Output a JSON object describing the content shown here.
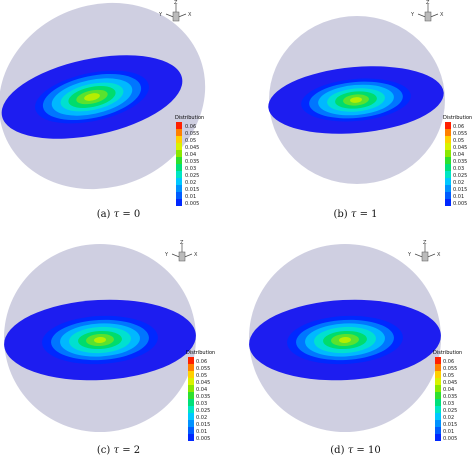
{
  "legend_title": "Distribution",
  "axis_labels": {
    "x": "X",
    "y": "Y",
    "z": "Z"
  },
  "colors": {
    "sphere": "#c7c7dc",
    "disk_outer": "#1d1df0",
    "scale": [
      "#0028ff",
      "#005dff",
      "#0092ff",
      "#00c8ff",
      "#00e6c4",
      "#00e07a",
      "#2ee02e",
      "#8ae800",
      "#d9f200",
      "#ffd000",
      "#ff8000",
      "#ff2000"
    ]
  },
  "panels": [
    {
      "caption_prefix": "(a)",
      "tau_symbol": "τ",
      "caption_suffix": "= 0",
      "ticks": [
        "0.06",
        "0.055",
        "0.05",
        "0.045",
        "0.04",
        "0.035",
        "0.03",
        "0.025",
        "0.02",
        "0.015",
        "0.01",
        "0.005"
      ]
    },
    {
      "caption_prefix": "(b)",
      "tau_symbol": "τ",
      "caption_suffix": "= 1",
      "ticks": [
        "0.06",
        "0.055",
        "0.05",
        "0.045",
        "0.04",
        "0.035",
        "0.03",
        "0.025",
        "0.02",
        "0.015",
        "0.01",
        "0.005"
      ]
    },
    {
      "caption_prefix": "(c)",
      "tau_symbol": "τ",
      "caption_suffix": "= 2",
      "ticks": [
        "0.06",
        "0.055",
        "0.05",
        "0.045",
        "0.04",
        "0.035",
        "0.03",
        "0.025",
        "0.02",
        "0.015",
        "0.01",
        "0.005"
      ]
    },
    {
      "caption_prefix": "(d)",
      "tau_symbol": "τ",
      "caption_suffix": "= 10",
      "ticks": [
        "0.06",
        "0.055",
        "0.05",
        "0.045",
        "0.04",
        "0.035",
        "0.03",
        "0.025",
        "0.02",
        "0.015",
        "0.01",
        "0.005"
      ]
    }
  ]
}
